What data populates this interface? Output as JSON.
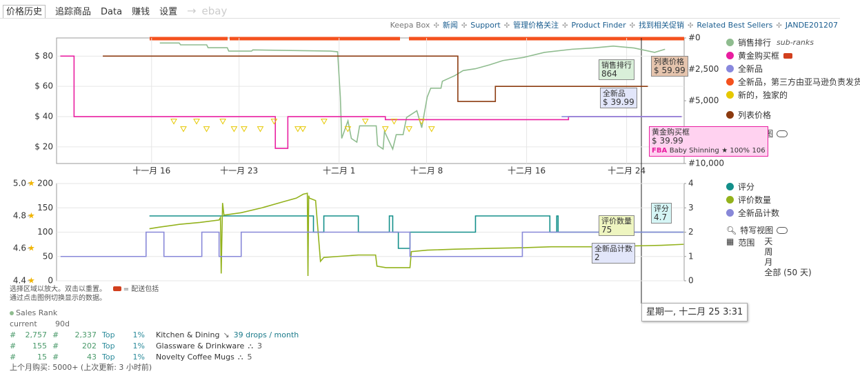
{
  "tabs": [
    "价格历史",
    "追踪商品",
    "Data",
    "赚钱",
    "设置"
  ],
  "ebay": "ebay",
  "links": [
    "Keepa Box",
    "新闻",
    "Support",
    "管理价格关注",
    "Product Finder",
    "找到相关促销",
    "Related Best Sellers",
    "JANDE201207"
  ],
  "chart_data": [
    {
      "type": "line",
      "xlim": [
        8.4,
        58.6
      ],
      "xticks": [
        {
          "value": 16,
          "label": "十一月 16"
        },
        {
          "value": 23,
          "label": "十一月 23"
        },
        {
          "value": 31,
          "label": "十二月 1"
        },
        {
          "value": 38,
          "label": "十二月 8"
        },
        {
          "value": 46,
          "label": "十二月 16"
        },
        {
          "value": 54,
          "label": "十二月 24"
        }
      ],
      "ylim": [
        9,
        92
      ],
      "yticks": [
        {
          "value": 20,
          "label": "$ 20"
        },
        {
          "value": 40,
          "label": "$ 40"
        },
        {
          "value": 60,
          "label": "$ 60"
        },
        {
          "value": 80,
          "label": "$ 80"
        }
      ],
      "y2lim": [
        10000,
        0
      ],
      "y2ticks": [
        {
          "value": 0,
          "label": "#0"
        },
        {
          "value": 2500,
          "label": "#2,500"
        },
        {
          "value": 5000,
          "label": "#5,000"
        },
        {
          "value": 7500,
          "label": "#7,500"
        },
        {
          "value": 10000,
          "label": "#10,000"
        }
      ],
      "grid": true,
      "series": [
        {
          "name": "销售排行",
          "color": "#8fbc8f",
          "axis": "y2",
          "x": [
            16.66,
            18.21,
            18.32,
            20.41,
            20.52,
            22.06,
            22.17,
            24.0,
            24.1,
            30.33,
            30.88,
            31.1,
            31.21,
            31.71,
            31.98,
            32.42,
            32.64,
            33.97,
            34.08,
            34.52,
            34.63,
            35.29,
            35.57,
            36.12,
            36.4,
            37.22,
            37.61,
            38.05,
            38.33,
            39.15,
            39.26,
            40.26,
            40.92,
            41.91,
            43.01,
            44.11,
            45.77,
            47.42,
            49.63,
            51.28,
            52.93,
            54.59,
            56.24,
            57.07
          ],
          "values": [
            400,
            400,
            550,
            550,
            780,
            780,
            1050,
            1050,
            950,
            1050,
            1100,
            4700,
            8000,
            6600,
            8000,
            8300,
            7000,
            7000,
            8550,
            8850,
            7450,
            8850,
            7700,
            7700,
            6333,
            5800,
            7150,
            4700,
            4000,
            4000,
            3450,
            3000,
            2600,
            2450,
            2150,
            1800,
            1550,
            1150,
            900,
            800,
            650,
            800,
            1150,
            900
          ]
        },
        {
          "name": "黄金购买框",
          "color": "#e91ea0",
          "x": [
            8.7,
            9.8,
            9.8,
            25.9,
            25.9,
            26.9,
            26.9,
            34.7,
            34.7,
            49.35,
            49.35,
            58.4
          ],
          "values": [
            80,
            80,
            40,
            40,
            19,
            19,
            40,
            40,
            38,
            38,
            40,
            40
          ]
        },
        {
          "name": "全新品",
          "color": "#8888dd",
          "x": [
            48.8,
            58.4
          ],
          "values": [
            40,
            40
          ]
        },
        {
          "name": "全新品，第三方由亚马逊负责发货",
          "color": "#f4511e"
        },
        {
          "name": "新的，独家的",
          "color": "#e6c800",
          "marker": "triangle",
          "x": [
            17.78,
            18.55,
            19.6,
            20.4,
            21.7,
            22.6,
            23.4,
            24.7,
            25.8,
            27.7,
            28.1,
            29.8,
            31.7,
            33.1,
            34.7,
            35.4,
            36.6,
            37.6,
            38.4
          ],
          "values": [
            37,
            32,
            37,
            32,
            37,
            32,
            32,
            32,
            37,
            32,
            32,
            37,
            32,
            37,
            32,
            37,
            32,
            37,
            32
          ]
        },
        {
          "name": "列表价格",
          "color": "#8b3a0f",
          "x": [
            12.1,
            40.5,
            40.5,
            43.5,
            43.5,
            55.7
          ],
          "values": [
            80,
            80,
            50,
            50,
            60,
            60
          ]
        }
      ]
    },
    {
      "type": "line",
      "xlim": [
        8.4,
        58.6
      ],
      "ylim": [
        0,
        200
      ],
      "yticks": [
        0,
        50,
        100,
        150,
        200
      ],
      "y2lim": [
        0,
        4
      ],
      "y2ticks": [
        0,
        1,
        2,
        3,
        4
      ],
      "y3lim": [
        4.4,
        5
      ],
      "y3ticks": [
        4.4,
        4.6,
        4.8,
        {
          "value": 5,
          "label": "5.0"
        }
      ],
      "grid": true,
      "series": [
        {
          "name": "评分",
          "color": "#138f8a",
          "axis": "y3",
          "x": [
            15.83,
            28.95,
            28.95,
            29.78,
            29.78,
            32.54,
            32.54,
            35.02,
            35.02,
            35.29,
            35.29,
            35.74,
            35.74,
            36.67,
            36.67,
            41.91,
            41.91,
            47.86,
            47.86,
            48.41,
            48.41,
            48.52,
            48.52,
            58.56
          ],
          "values": [
            4.8,
            4.8,
            4.7,
            4.7,
            4.8,
            4.8,
            4.7,
            4.7,
            4.8,
            4.8,
            4.7,
            4.7,
            4.6,
            4.6,
            4.7,
            4.7,
            4.8,
            4.8,
            4.7,
            4.7,
            4.8,
            4.8,
            4.7,
            4.7
          ]
        },
        {
          "name": "评价数量",
          "color": "#93b21c",
          "x": [
            15.83,
            16.55,
            18.21,
            19.86,
            21.4,
            21.51,
            21.57,
            21.68,
            21.79,
            23.17,
            24.82,
            26.47,
            27.58,
            28.13,
            28.46,
            28.51,
            28.57,
            28.62,
            29.12,
            29.51,
            29.78,
            30.88,
            32.54,
            33.92,
            34.03,
            34.74,
            36.67,
            36.78,
            38.05,
            40.26,
            43.56,
            45.77,
            47.97,
            51.28,
            55.14,
            56.79,
            58.56
          ],
          "values": [
            107,
            110,
            116,
            120,
            125,
            130,
            15,
            160,
            135,
            140,
            150,
            162,
            170,
            178,
            180,
            10,
            175,
            170,
            165,
            40,
            48,
            50,
            53,
            53,
            30,
            27,
            27,
            60,
            63,
            65,
            67,
            68,
            70,
            70,
            72,
            73,
            75
          ]
        },
        {
          "name": "全新品计数",
          "color": "#8888d8",
          "axis": "y2",
          "x": [
            8.72,
            15.56,
            15.56,
            16.99,
            16.99,
            20.02,
            20.02,
            21.4,
            21.4,
            23.17,
            23.17,
            36.67,
            36.67,
            45.66,
            45.66,
            58.56
          ],
          "values": [
            1,
            1,
            2,
            2,
            1,
            1,
            2,
            2,
            1,
            1,
            2,
            2,
            1,
            1,
            2,
            2
          ]
        }
      ]
    }
  ],
  "legend_notes": {
    "sub_ranks": "sub-ranks",
    "closeup": "特写视图",
    "closeup2": "特写视图",
    "range": "范围",
    "range_options": [
      "天",
      "周",
      "月",
      "全部 (50 天)"
    ]
  },
  "tooltips": {
    "sales_rank": [
      "销售排行",
      "864"
    ],
    "list_price": [
      "列表价格",
      "$ 59.99"
    ],
    "new": [
      "全新品",
      "$ 39.99"
    ],
    "buybox": [
      "黄金购买框",
      "$ 39.99",
      "FBA",
      "Baby Shinning",
      "★ 100%",
      "106"
    ],
    "review_count": [
      "评价数量",
      "75"
    ],
    "rating": [
      "评分",
      "4.7"
    ],
    "new_count": [
      "全新品计数",
      "2"
    ],
    "hover_date": "星期一, 十二月 25 3:31"
  },
  "hint": [
    "选择区域以放大。双击以重置。",
    "= 配送包括",
    "通过点击图例切换显示的数据。"
  ],
  "sales_rank": {
    "title": "Sales Rank",
    "headers": [
      "current",
      "90d"
    ],
    "rows": [
      [
        "#",
        "2,757",
        "#",
        "2,337",
        "Top",
        "1%",
        "Kitchen & Dining",
        "39 drops / month"
      ],
      [
        "#",
        "155",
        "#",
        "202",
        "Top",
        "1%",
        "Glassware & Drinkware",
        "3"
      ],
      [
        "#",
        "15",
        "#",
        "43",
        "Top",
        "1%",
        "Novelty Coffee Mugs",
        "5"
      ]
    ]
  },
  "footer": "上个月购买: 5000+ (上次更新: 3 小时前)"
}
